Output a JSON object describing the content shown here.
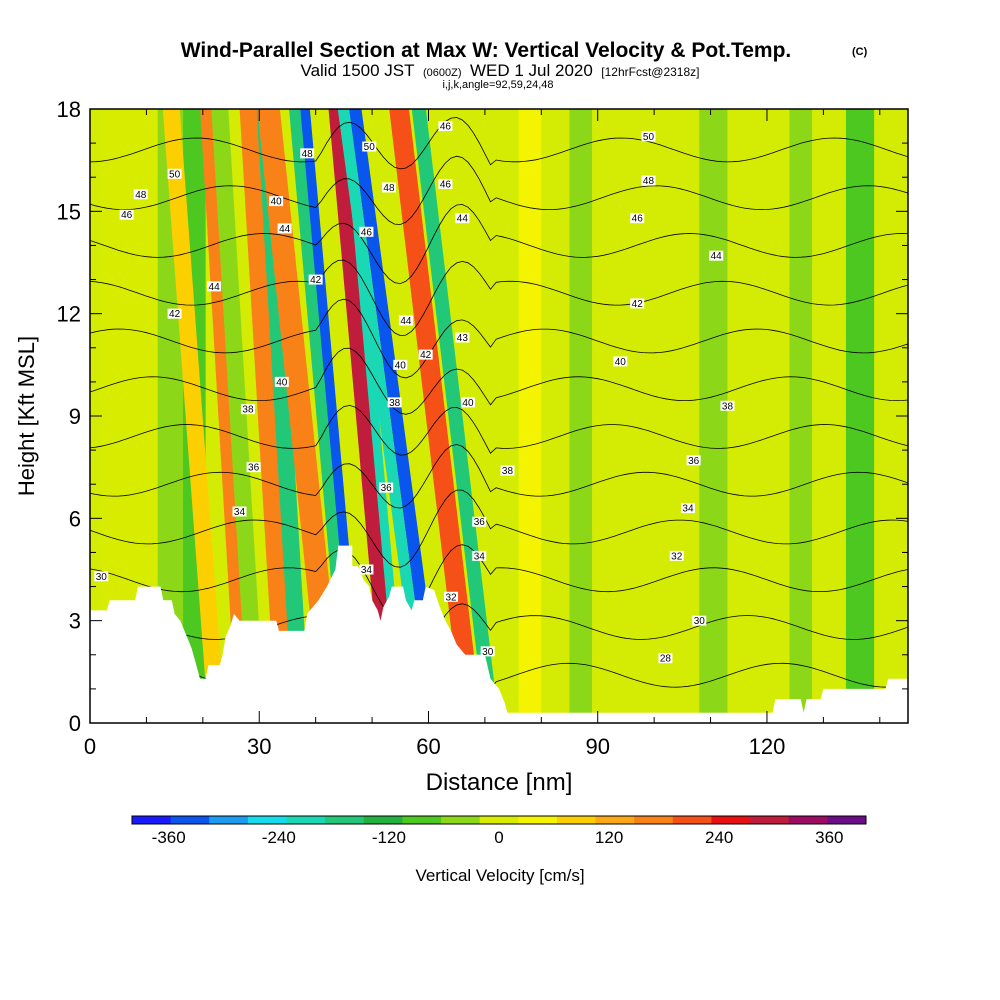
{
  "header": {
    "title": "Wind-Parallel Section at Max W: Vertical Velocity & Pot.Temp.",
    "copyright": "(C)",
    "valid_prefix": "Valid 1500 JST",
    "valid_utc": "(0600Z)",
    "valid_date": "WED 1 Jul 2020",
    "forecast": "[12hrFcst@2318z]",
    "indices": "i,j,k,angle=92,59,24,48"
  },
  "chart_data": {
    "type": "heatmap",
    "xlabel": "Distance [nm]",
    "ylabel": "Height [Kft MSL]",
    "xlim": [
      0,
      145
    ],
    "ylim": [
      0,
      18
    ],
    "x_ticks": [
      "0",
      "30",
      "60",
      "90",
      "120"
    ],
    "x_tick_values": [
      0,
      30,
      60,
      90,
      120
    ],
    "y_ticks": [
      "0",
      "3",
      "6",
      "9",
      "12",
      "15",
      "18"
    ],
    "y_tick_values": [
      0,
      3,
      6,
      9,
      12,
      15,
      18
    ],
    "colorbar": {
      "label": "Vertical Velocity [cm/s]",
      "tick_labels": [
        "-360",
        "-240",
        "-120",
        "0",
        "120",
        "240",
        "360"
      ],
      "tick_values": [
        -360,
        -240,
        -120,
        0,
        120,
        240,
        360
      ],
      "range": [
        -400,
        400
      ],
      "colors": [
        "#1a1aff",
        "#0a55ee",
        "#1c9cf0",
        "#14dcea",
        "#1ad8b4",
        "#22c878",
        "#24b040",
        "#4cc820",
        "#8cd818",
        "#d8ec00",
        "#f4f400",
        "#fcd000",
        "#fca814",
        "#f88218",
        "#f45018",
        "#e81010",
        "#c01c3c",
        "#9c0c64",
        "#6c0c88"
      ]
    },
    "theta_contours": {
      "levels": [
        28,
        30,
        32,
        34,
        36,
        38,
        40,
        42,
        44,
        46,
        48,
        50
      ],
      "labels": [
        {
          "value": "30",
          "x": 2,
          "y": 4.3
        },
        {
          "value": "34",
          "x": 26.5,
          "y": 6.2
        },
        {
          "value": "36",
          "x": 29,
          "y": 7.5
        },
        {
          "value": "38",
          "x": 28,
          "y": 9.2
        },
        {
          "value": "40",
          "x": 34,
          "y": 10.0
        },
        {
          "value": "42",
          "x": 15,
          "y": 12.0
        },
        {
          "value": "44",
          "x": 22,
          "y": 12.8
        },
        {
          "value": "46",
          "x": 6.5,
          "y": 14.9
        },
        {
          "value": "48",
          "x": 9,
          "y": 15.5
        },
        {
          "value": "50",
          "x": 15,
          "y": 16.1
        },
        {
          "value": "40",
          "x": 33,
          "y": 15.3
        },
        {
          "value": "44",
          "x": 34.5,
          "y": 14.5
        },
        {
          "value": "48",
          "x": 38.5,
          "y": 16.7
        },
        {
          "value": "42",
          "x": 40,
          "y": 13.0
        },
        {
          "value": "50",
          "x": 49.5,
          "y": 16.9
        },
        {
          "value": "46",
          "x": 49,
          "y": 14.4
        },
        {
          "value": "48",
          "x": 53,
          "y": 15.7
        },
        {
          "value": "44",
          "x": 56,
          "y": 11.8
        },
        {
          "value": "40",
          "x": 55,
          "y": 10.5
        },
        {
          "value": "38",
          "x": 54,
          "y": 9.4
        },
        {
          "value": "36",
          "x": 52.5,
          "y": 6.9
        },
        {
          "value": "34",
          "x": 49,
          "y": 4.5
        },
        {
          "value": "42",
          "x": 59.5,
          "y": 10.8
        },
        {
          "value": "46",
          "x": 63,
          "y": 17.5
        },
        {
          "value": "46",
          "x": 63,
          "y": 15.8
        },
        {
          "value": "44",
          "x": 66,
          "y": 14.8
        },
        {
          "value": "43",
          "x": 66,
          "y": 11.3
        },
        {
          "value": "40",
          "x": 67,
          "y": 9.4
        },
        {
          "value": "38",
          "x": 74,
          "y": 7.4
        },
        {
          "value": "36",
          "x": 69,
          "y": 5.9
        },
        {
          "value": "34",
          "x": 69,
          "y": 4.9
        },
        {
          "value": "32",
          "x": 64,
          "y": 3.7
        },
        {
          "value": "30",
          "x": 70.5,
          "y": 2.1
        },
        {
          "value": "50",
          "x": 99,
          "y": 17.2
        },
        {
          "value": "48",
          "x": 99,
          "y": 15.9
        },
        {
          "value": "46",
          "x": 97,
          "y": 14.8
        },
        {
          "value": "44",
          "x": 111,
          "y": 13.7
        },
        {
          "value": "42",
          "x": 97,
          "y": 12.3
        },
        {
          "value": "40",
          "x": 94,
          "y": 10.6
        },
        {
          "value": "38",
          "x": 113,
          "y": 9.3
        },
        {
          "value": "36",
          "x": 107,
          "y": 7.7
        },
        {
          "value": "34",
          "x": 106,
          "y": 6.3
        },
        {
          "value": "32",
          "x": 104,
          "y": 4.9
        },
        {
          "value": "30",
          "x": 108,
          "y": 3.0
        },
        {
          "value": "28",
          "x": 102,
          "y": 1.9
        }
      ]
    },
    "velocity_bands": [
      {
        "x": 2,
        "w": 10,
        "value": 20,
        "tilt": 0
      },
      {
        "x": 12,
        "w": 5,
        "value": -40,
        "tilt": 0
      },
      {
        "x": 16.5,
        "w": 4,
        "value": -100,
        "tilt": 0
      },
      {
        "x": 21,
        "w": 3,
        "value": 90,
        "tilt": 0.5
      },
      {
        "x": 26,
        "w": 3,
        "value": 150,
        "tilt": 0.4
      },
      {
        "x": 28,
        "w": 3,
        "value": -60,
        "tilt": 0.4
      },
      {
        "x": 33,
        "w": 3.5,
        "value": 160,
        "tilt": 0.4
      },
      {
        "x": 36,
        "w": 3,
        "value": -150,
        "tilt": 0.4
      },
      {
        "x": 41,
        "w": 4,
        "value": 180,
        "tilt": 0.7
      },
      {
        "x": 46.5,
        "w": 2.2,
        "value": -350,
        "tilt": 0.6
      },
      {
        "x": 45,
        "w": 2,
        "value": -180,
        "tilt": 0.6
      },
      {
        "x": 52,
        "w": 3,
        "value": 280,
        "tilt": 0.6
      },
      {
        "x": 54.5,
        "w": 1.6,
        "value": -200,
        "tilt": 0.6
      },
      {
        "x": 60.5,
        "w": 2.2,
        "value": -330,
        "tilt": 0.9
      },
      {
        "x": 58.5,
        "w": 2,
        "value": -190,
        "tilt": 0.9
      },
      {
        "x": 66,
        "w": 3.5,
        "value": 230,
        "tilt": 0.8
      },
      {
        "x": 70,
        "w": 2.5,
        "value": -160,
        "tilt": 0.8
      },
      {
        "x": 76,
        "w": 4,
        "value": 30,
        "tilt": 0
      },
      {
        "x": 85,
        "w": 4,
        "value": -30,
        "tilt": 0
      },
      {
        "x": 108,
        "w": 5,
        "value": -60,
        "tilt": 0
      },
      {
        "x": 124,
        "w": 4,
        "value": -40,
        "tilt": 0
      },
      {
        "x": 134,
        "w": 5,
        "value": -70,
        "tilt": 0
      }
    ],
    "terrain": [
      [
        0,
        3.3
      ],
      [
        3,
        3.3
      ],
      [
        3.5,
        3.6
      ],
      [
        8,
        3.6
      ],
      [
        8.5,
        4.0
      ],
      [
        12.5,
        4.0
      ],
      [
        13,
        3.6
      ],
      [
        14.5,
        3.6
      ],
      [
        15,
        3.2
      ],
      [
        16,
        3.0
      ],
      [
        17,
        2.6
      ],
      [
        18,
        2.2
      ],
      [
        18.5,
        1.9
      ],
      [
        19,
        1.6
      ],
      [
        19.5,
        1.3
      ],
      [
        20.5,
        1.3
      ],
      [
        21,
        1.7
      ],
      [
        23,
        1.7
      ],
      [
        23.5,
        2.0
      ],
      [
        24,
        2.5
      ],
      [
        25,
        2.9
      ],
      [
        25.5,
        3.2
      ],
      [
        26.5,
        3.0
      ],
      [
        33,
        3.0
      ],
      [
        33.5,
        2.7
      ],
      [
        38,
        2.7
      ],
      [
        38.5,
        3.2
      ],
      [
        40.5,
        3.6
      ],
      [
        42,
        4.0
      ],
      [
        43.5,
        4.5
      ],
      [
        44,
        5.2
      ],
      [
        46.5,
        5.2
      ],
      [
        46.5,
        4.6
      ],
      [
        47.5,
        4.6
      ],
      [
        48.5,
        4.2
      ],
      [
        49.5,
        4.0
      ],
      [
        50,
        3.6
      ],
      [
        51,
        3.3
      ],
      [
        51.5,
        3.0
      ],
      [
        52,
        3.4
      ],
      [
        53,
        3.7
      ],
      [
        53.5,
        4.0
      ],
      [
        55.5,
        4.0
      ],
      [
        56,
        3.6
      ],
      [
        57,
        3.3
      ],
      [
        57.5,
        3.6
      ],
      [
        59,
        3.6
      ],
      [
        59.5,
        4.0
      ],
      [
        61,
        3.9
      ],
      [
        62,
        3.4
      ],
      [
        63,
        3.0
      ],
      [
        64,
        2.7
      ],
      [
        65,
        2.3
      ],
      [
        66.5,
        2.0
      ],
      [
        70,
        2.0
      ],
      [
        71,
        1.3
      ],
      [
        72.5,
        1.0
      ],
      [
        73.5,
        0.6
      ],
      [
        74,
        0.3
      ],
      [
        121,
        0.3
      ],
      [
        121.5,
        0.7
      ],
      [
        126,
        0.7
      ],
      [
        126.5,
        0.3
      ],
      [
        127,
        0.7
      ],
      [
        129.5,
        0.7
      ],
      [
        130,
        1.0
      ],
      [
        141,
        1.0
      ],
      [
        141.5,
        1.3
      ],
      [
        145,
        1.3
      ]
    ]
  }
}
